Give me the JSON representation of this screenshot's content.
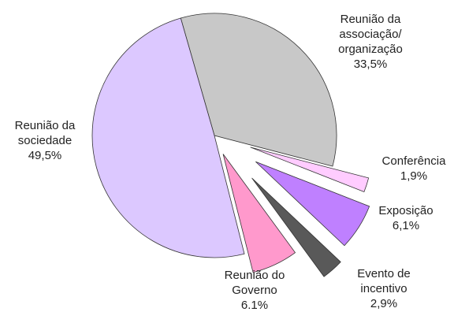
{
  "chart_data": {
    "type": "pie",
    "categories": [
      "Reunião da associação/ organização",
      "Conferência",
      "Exposição",
      "Evento de incentivo",
      "Reunião do Governo",
      "Reunião da sociedade"
    ],
    "values": [
      33.5,
      1.9,
      6.1,
      2.9,
      6.1,
      49.5
    ],
    "value_labels": [
      "33,5%",
      "1,9%",
      "6,1%",
      "2,9%",
      "6.1%",
      "49,5%"
    ],
    "colors": [
      "#c8c8c8",
      "#ffccff",
      "#bf80ff",
      "#595959",
      "#ff99cc",
      "#dcc8ff"
    ]
  }
}
